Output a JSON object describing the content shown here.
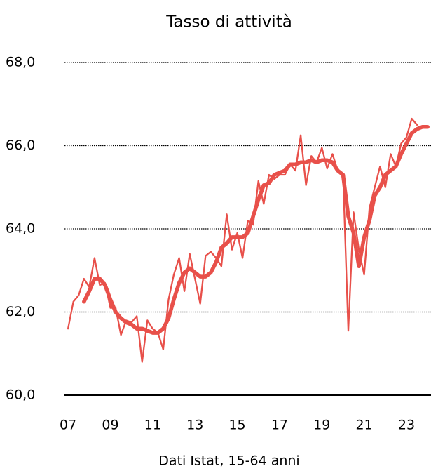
{
  "chart_data": {
    "type": "line",
    "title": "Tasso di attività",
    "xlabel": "Dati Istat, 15-64 anni",
    "xlim": [
      2006.83,
      2024.16
    ],
    "ylim": [
      60,
      68
    ],
    "xticks": [
      {
        "value": 2007,
        "label": "07"
      },
      {
        "value": 2009,
        "label": "09"
      },
      {
        "value": 2011,
        "label": "11"
      },
      {
        "value": 2013,
        "label": "13"
      },
      {
        "value": 2015,
        "label": "15"
      },
      {
        "value": 2017,
        "label": "17"
      },
      {
        "value": 2019,
        "label": "19"
      },
      {
        "value": 2021,
        "label": "21"
      },
      {
        "value": 2023,
        "label": "23"
      }
    ],
    "yticks": [
      {
        "value": 60,
        "label": "60,0"
      },
      {
        "value": 62,
        "label": "62,0"
      },
      {
        "value": 64,
        "label": "64,0"
      },
      {
        "value": 66,
        "label": "66,0"
      },
      {
        "value": 68,
        "label": "68,0"
      }
    ],
    "grid": true,
    "series": [
      {
        "color": "#e8504a",
        "x": [
          2007,
          2007.25,
          2007.5,
          2007.75,
          2008,
          2008.25,
          2008.5,
          2008.75,
          2009,
          2009.25,
          2009.5,
          2009.75,
          2010,
          2010.25,
          2010.5,
          2010.75,
          2011,
          2011.25,
          2011.5,
          2011.75,
          2012,
          2012.25,
          2012.5,
          2012.75,
          2013,
          2013.25,
          2013.5,
          2013.75,
          2014,
          2014.25,
          2014.5,
          2014.75,
          2015,
          2015.25,
          2015.5,
          2015.75,
          2016,
          2016.25,
          2016.5,
          2016.75,
          2017,
          2017.25,
          2017.5,
          2017.75,
          2018,
          2018.25,
          2018.5,
          2018.75,
          2019,
          2019.25,
          2019.5,
          2019.75,
          2020,
          2020.25,
          2020.5,
          2020.75,
          2021,
          2021.25,
          2021.5,
          2021.75,
          2022,
          2022.25,
          2022.5,
          2022.75,
          2023,
          2023.25,
          2023.5
        ],
        "values": [
          61.6,
          62.25,
          62.4,
          62.8,
          62.6,
          63.3,
          62.65,
          62.7,
          62.1,
          62.1,
          61.45,
          61.8,
          61.75,
          61.9,
          60.8,
          61.8,
          61.6,
          61.5,
          61.1,
          62.3,
          62.9,
          63.3,
          62.5,
          63.4,
          62.8,
          62.2,
          63.35,
          63.45,
          63.3,
          63.1,
          64.35,
          63.5,
          63.9,
          63.3,
          64.2,
          64.1,
          65.15,
          64.6,
          65.3,
          65.2,
          65.3,
          65.3,
          65.55,
          65.4,
          66.25,
          65.05,
          65.75,
          65.6,
          65.95,
          65.45,
          65.8,
          65.4,
          65.3,
          61.55,
          64.4,
          63.5,
          62.9,
          64.5,
          65.0,
          65.5,
          65.0,
          65.8,
          65.5,
          66.05,
          66.2,
          66.65,
          66.5
        ]
      },
      {
        "color": "#e8504a",
        "x": [
          2007.75,
          2008,
          2008.25,
          2008.5,
          2008.75,
          2009,
          2009.25,
          2009.5,
          2009.75,
          2010,
          2010.25,
          2010.5,
          2010.75,
          2011,
          2011.25,
          2011.5,
          2011.75,
          2012,
          2012.25,
          2012.5,
          2012.75,
          2013,
          2013.25,
          2013.5,
          2013.75,
          2014,
          2014.25,
          2014.5,
          2014.75,
          2015,
          2015.25,
          2015.5,
          2015.75,
          2016,
          2016.25,
          2016.5,
          2016.75,
          2017,
          2017.25,
          2017.5,
          2017.75,
          2018,
          2018.25,
          2018.5,
          2018.75,
          2019,
          2019.25,
          2019.5,
          2019.75,
          2020,
          2020.25,
          2020.5,
          2020.75,
          2021,
          2021.25,
          2021.5,
          2021.75,
          2022,
          2022.25,
          2022.5,
          2022.75,
          2023,
          2023.25,
          2023.5,
          2023.75,
          2024
        ],
        "values": [
          62.25,
          62.5,
          62.8,
          62.8,
          62.65,
          62.3,
          62.0,
          61.85,
          61.75,
          61.7,
          61.6,
          61.6,
          61.55,
          61.5,
          61.5,
          61.6,
          61.85,
          62.3,
          62.7,
          62.95,
          63.05,
          62.95,
          62.85,
          62.85,
          62.95,
          63.2,
          63.55,
          63.65,
          63.8,
          63.8,
          63.8,
          63.9,
          64.3,
          64.7,
          65.05,
          65.1,
          65.3,
          65.35,
          65.4,
          65.55,
          65.55,
          65.6,
          65.6,
          65.65,
          65.6,
          65.65,
          65.65,
          65.6,
          65.4,
          65.3,
          64.3,
          63.9,
          63.1,
          63.8,
          64.2,
          64.8,
          65.0,
          65.3,
          65.4,
          65.5,
          65.8,
          66.05,
          66.3,
          66.4,
          66.45,
          66.45
        ]
      }
    ]
  }
}
